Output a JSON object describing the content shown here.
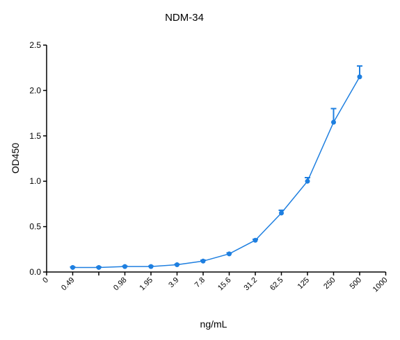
{
  "chart_data": {
    "type": "line",
    "title": "NDM-34",
    "x_label": "ng/mL",
    "y_label": "OD450",
    "categories": [
      "0",
      "0.49",
      null,
      "0.98",
      "1.95",
      "3.9",
      "7.8",
      "15.6",
      "31.2",
      "62.5",
      "125",
      "250",
      "500",
      "1000"
    ],
    "series": [
      {
        "name": "NDM-34",
        "color": "#1e7fe0",
        "values": [
          null,
          0.05,
          0.05,
          0.06,
          0.06,
          0.08,
          0.12,
          0.2,
          0.35,
          0.65,
          1.0,
          1.65,
          2.15,
          null
        ],
        "errors": [
          null,
          0.005,
          0.005,
          0.005,
          0.005,
          0.005,
          0.01,
          0.01,
          0.01,
          0.03,
          0.04,
          0.15,
          0.12,
          null
        ]
      }
    ],
    "ylim": [
      0,
      2.5
    ],
    "yticks": [
      {
        "value": 0,
        "label": "0.0"
      },
      0.5,
      {
        "value": 1,
        "label": "1.0"
      },
      1.5,
      {
        "value": 2,
        "label": "2.0"
      },
      2.5
    ]
  }
}
